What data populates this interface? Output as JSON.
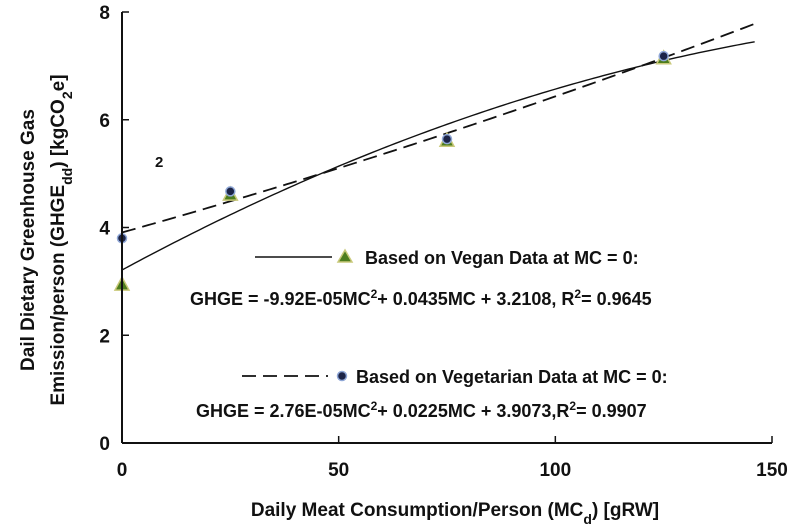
{
  "chart_data": {
    "type": "scatter",
    "xlabel_main": "Daily Meat Consumption/Person (MC",
    "xlabel_sub": "d",
    "xlabel_end": ") [gRW]",
    "ylabel_line1": "Dail Dietary Greenhouse Gas",
    "ylabel_line2_main": "Emission/person (GHGE",
    "ylabel_line2_sub": "dd",
    "ylabel_line2_mid": ") [kgCO",
    "ylabel_line2_sub2": "2",
    "ylabel_line2_end": "e]",
    "xlim": [
      0,
      150
    ],
    "ylim": [
      0,
      8
    ],
    "x_ticks": [
      "0",
      "50",
      "100",
      "150"
    ],
    "y_ticks": [
      "0",
      "2",
      "4",
      "6",
      "8"
    ],
    "grid": false,
    "stray_label": "2",
    "series": [
      {
        "name": "Based on Vegan Data at MC = 0:",
        "marker": "triangle",
        "line_style": "solid",
        "x": [
          0,
          25,
          75,
          125
        ],
        "y": [
          2.95,
          4.62,
          5.62,
          7.15
        ],
        "equation_main": "GHGE = -9.92E-05MC",
        "equation_sup": "2",
        "equation_rest": "+ 0.0435MC + 3.2108, R",
        "equation_sup2": "2",
        "equation_end": "= 0.9645",
        "fit": {
          "a": -9.92e-05,
          "b": 0.0435,
          "c": 3.2108
        }
      },
      {
        "name": "Based on Vegetarian Data at MC = 0:",
        "marker": "circle",
        "line_style": "dashed",
        "x": [
          0,
          25,
          75,
          125
        ],
        "y": [
          3.8,
          4.67,
          5.64,
          7.18
        ],
        "equation_main": "GHGE = 2.76E-05MC",
        "equation_sup": "2",
        "equation_rest": "+ 0.0225MC + 3.9073,R",
        "equation_sup2": "2",
        "equation_end": "= 0.9907",
        "fit": {
          "a": 2.76e-05,
          "b": 0.0225,
          "c": 3.9073
        }
      }
    ],
    "colors": {
      "triangle_fill": "#4d7d1e",
      "triangle_edge": "#c9c97a",
      "circle_fill": "#1c2447",
      "circle_edge": "#8fa7d6"
    }
  }
}
